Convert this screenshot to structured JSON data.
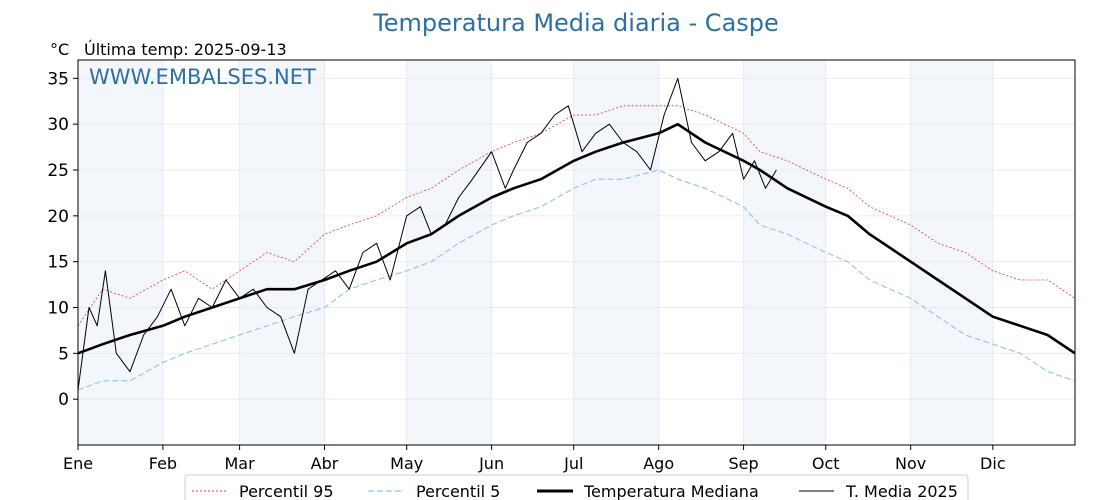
{
  "chart_data": {
    "type": "line",
    "title": "Temperatura Media diaria - Caspe",
    "unit": "°C",
    "subtitle": "Última temp: 2025-09-13",
    "watermark": "WWW.EMBALSES.NET",
    "ylim": [
      -5,
      37
    ],
    "yticks": [
      0,
      5,
      10,
      15,
      20,
      25,
      30,
      35
    ],
    "xlim": [
      1,
      365
    ],
    "months": [
      {
        "label": "Ene",
        "day": 1
      },
      {
        "label": "Feb",
        "day": 32
      },
      {
        "label": "Mar",
        "day": 60
      },
      {
        "label": "Abr",
        "day": 91
      },
      {
        "label": "May",
        "day": 121
      },
      {
        "label": "Jun",
        "day": 152
      },
      {
        "label": "Jul",
        "day": 182
      },
      {
        "label": "Ago",
        "day": 213
      },
      {
        "label": "Sep",
        "day": 244
      },
      {
        "label": "Oct",
        "day": 274
      },
      {
        "label": "Nov",
        "day": 305
      },
      {
        "label": "Dic",
        "day": 335
      }
    ],
    "grid": true,
    "legend_position": "bottom",
    "series": [
      {
        "name": "Percentil 95",
        "color": "#e8392b",
        "style": "dotted",
        "x": [
          1,
          10,
          20,
          32,
          40,
          50,
          60,
          70,
          80,
          91,
          100,
          110,
          121,
          130,
          140,
          152,
          160,
          170,
          182,
          190,
          200,
          213,
          220,
          230,
          244,
          250,
          260,
          274,
          282,
          290,
          305,
          315,
          325,
          335,
          345,
          355,
          365
        ],
        "values": [
          8,
          12,
          11,
          13,
          14,
          12,
          14,
          16,
          15,
          18,
          19,
          20,
          22,
          23,
          25,
          27,
          28,
          29,
          31,
          31,
          32,
          32,
          32,
          31,
          29,
          27,
          26,
          24,
          23,
          21,
          19,
          17,
          16,
          14,
          13,
          13,
          11
        ]
      },
      {
        "name": "Percentil 5",
        "color": "#8fc6dc",
        "style": "dashed",
        "x": [
          1,
          10,
          20,
          32,
          40,
          50,
          60,
          70,
          80,
          91,
          100,
          110,
          121,
          130,
          140,
          152,
          160,
          170,
          182,
          190,
          200,
          213,
          220,
          230,
          244,
          250,
          260,
          274,
          282,
          290,
          305,
          315,
          325,
          335,
          345,
          355,
          365
        ],
        "values": [
          1,
          2,
          2,
          4,
          5,
          6,
          7,
          8,
          9,
          10,
          12,
          13,
          14,
          15,
          17,
          19,
          20,
          21,
          23,
          24,
          24,
          25,
          24,
          23,
          21,
          19,
          18,
          16,
          15,
          13,
          11,
          9,
          7,
          6,
          5,
          3,
          2
        ]
      },
      {
        "name": "Temperatura Mediana",
        "color": "#000000",
        "style": "thick",
        "x": [
          1,
          10,
          20,
          32,
          40,
          50,
          60,
          70,
          80,
          91,
          100,
          110,
          121,
          130,
          140,
          152,
          160,
          170,
          182,
          190,
          200,
          213,
          220,
          230,
          244,
          250,
          260,
          274,
          282,
          290,
          305,
          315,
          325,
          335,
          345,
          355,
          365
        ],
        "values": [
          5,
          6,
          7,
          8,
          9,
          10,
          11,
          12,
          12,
          13,
          14,
          15,
          17,
          18,
          20,
          22,
          23,
          24,
          26,
          27,
          28,
          29,
          30,
          28,
          26,
          25,
          23,
          21,
          20,
          18,
          15,
          13,
          11,
          9,
          8,
          7,
          5
        ]
      },
      {
        "name": "T. Media 2025",
        "color": "#000000",
        "style": "thin",
        "x": [
          1,
          5,
          8,
          11,
          15,
          20,
          25,
          30,
          35,
          40,
          45,
          50,
          55,
          60,
          65,
          70,
          75,
          80,
          85,
          90,
          95,
          100,
          105,
          110,
          115,
          121,
          126,
          130,
          135,
          140,
          145,
          152,
          157,
          160,
          165,
          170,
          175,
          180,
          185,
          190,
          195,
          200,
          205,
          210,
          215,
          220,
          225,
          230,
          235,
          240,
          244,
          248,
          252,
          256
        ],
        "values": [
          1,
          10,
          8,
          14,
          5,
          3,
          7,
          9,
          12,
          8,
          11,
          10,
          13,
          11,
          12,
          10,
          9,
          5,
          12,
          13,
          14,
          12,
          16,
          17,
          13,
          20,
          21,
          18,
          19,
          22,
          24,
          27,
          23,
          25,
          28,
          29,
          31,
          32,
          27,
          29,
          30,
          28,
          27,
          25,
          31,
          35,
          28,
          26,
          27,
          29,
          24,
          26,
          23,
          25
        ]
      }
    ]
  },
  "legend": {
    "p95": "Percentil 95",
    "p5": "Percentil 5",
    "median": "Temperatura Mediana",
    "y2025": "T. Media 2025"
  }
}
